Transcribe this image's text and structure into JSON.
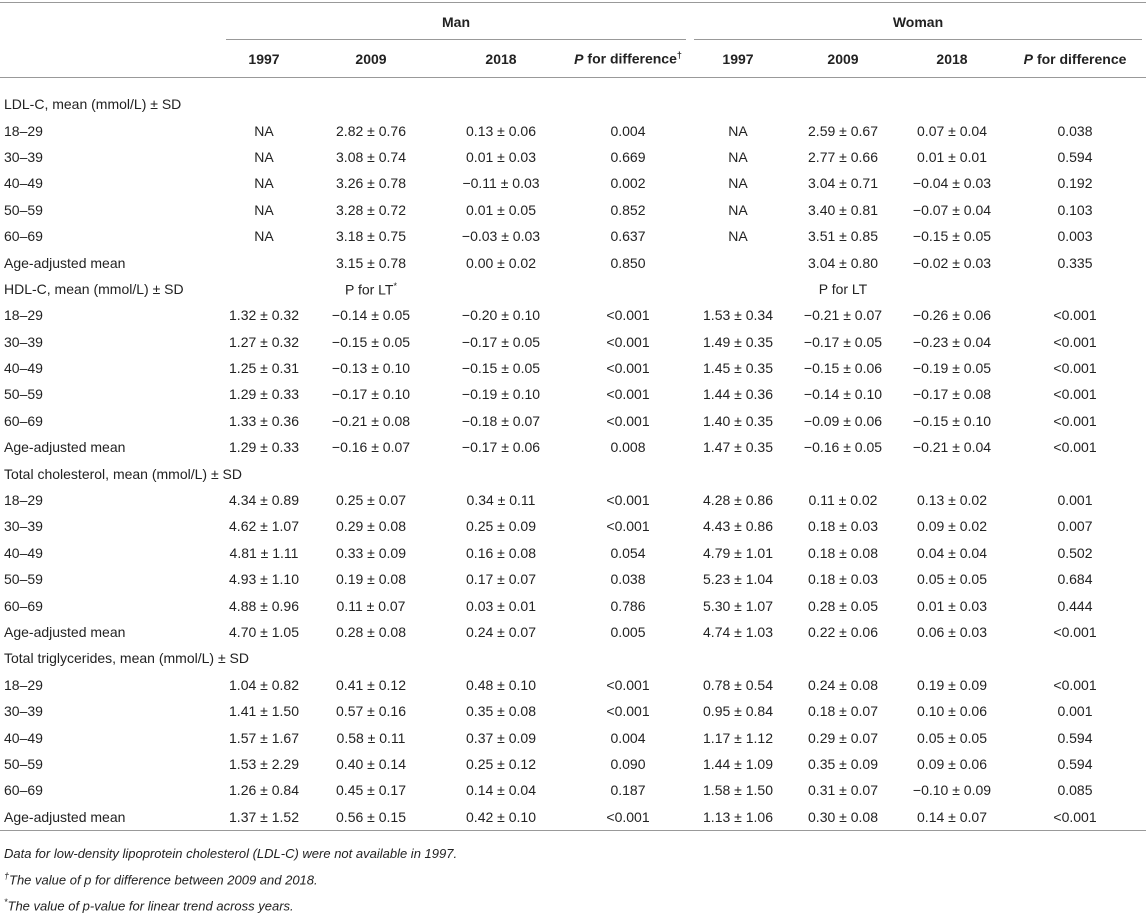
{
  "table": {
    "groups": [
      "Man",
      "Woman"
    ],
    "columns": [
      "1997",
      "2009",
      "2018",
      {
        "p": "P",
        "rest": "for difference",
        "mark": "†"
      },
      "1997",
      "2009",
      "2018",
      {
        "p": "P",
        "rest": "for difference"
      }
    ],
    "sections": [
      {
        "title": "LDL-C, mean (mmol/L) ± SD",
        "rows": [
          [
            "18–29",
            "NA",
            "2.82 ± 0.76",
            "0.13 ± 0.06",
            "0.004",
            "NA",
            "2.59 ± 0.67",
            "0.07 ± 0.04",
            "0.038"
          ],
          [
            "30–39",
            "NA",
            "3.08 ± 0.74",
            "0.01 ± 0.03",
            "0.669",
            "NA",
            "2.77 ± 0.66",
            "0.01 ± 0.01",
            "0.594"
          ],
          [
            "40–49",
            "NA",
            "3.26 ± 0.78",
            "−0.11 ± 0.03",
            "0.002",
            "NA",
            "3.04 ± 0.71",
            "−0.04 ± 0.03",
            "0.192"
          ],
          [
            "50–59",
            "NA",
            "3.28 ± 0.72",
            "0.01 ± 0.05",
            "0.852",
            "NA",
            "3.40 ± 0.81",
            "−0.07 ± 0.04",
            "0.103"
          ],
          [
            "60–69",
            "NA",
            "3.18 ± 0.75",
            "−0.03 ± 0.03",
            "0.637",
            "NA",
            "3.51 ± 0.85",
            "−0.15 ± 0.05",
            "0.003"
          ],
          [
            "Age-adjusted mean",
            null,
            "3.15 ± 0.78",
            "0.00 ± 0.02",
            "0.850",
            null,
            "3.04 ± 0.80",
            "−0.02 ± 0.03",
            "0.335"
          ]
        ]
      },
      {
        "title": "HDL-C, mean (mmol/L) ± SD",
        "notes": [
          {
            "text": "P for LT",
            "mark": "*"
          },
          {
            "text": "P for LT"
          }
        ],
        "rows": [
          [
            "18–29",
            "1.32 ± 0.32",
            "−0.14 ± 0.05",
            "−0.20 ± 0.10",
            "<0.001",
            "1.53 ± 0.34",
            "−0.21 ± 0.07",
            "−0.26 ± 0.06",
            "<0.001"
          ],
          [
            "30–39",
            "1.27 ± 0.32",
            "−0.15 ± 0.05",
            "−0.17 ± 0.05",
            "<0.001",
            "1.49 ± 0.35",
            "−0.17 ± 0.05",
            "−0.23 ± 0.04",
            "<0.001"
          ],
          [
            "40–49",
            "1.25 ± 0.31",
            "−0.13 ± 0.10",
            "−0.15 ± 0.05",
            "<0.001",
            "1.45 ± 0.35",
            "−0.15 ± 0.06",
            "−0.19 ± 0.05",
            "<0.001"
          ],
          [
            "50–59",
            "1.29 ± 0.33",
            "−0.17 ± 0.10",
            "−0.19 ± 0.10",
            "<0.001",
            "1.44 ± 0.36",
            "−0.14 ± 0.10",
            "−0.17 ± 0.08",
            "<0.001"
          ],
          [
            "60–69",
            "1.33 ± 0.36",
            "−0.21 ± 0.08",
            "−0.18 ± 0.07",
            "<0.001",
            "1.40 ± 0.35",
            "−0.09 ± 0.06",
            "−0.15 ± 0.10",
            "<0.001"
          ],
          [
            "Age-adjusted mean",
            "1.29 ± 0.33",
            "−0.16 ± 0.07",
            "−0.17 ± 0.06",
            "0.008",
            "1.47 ± 0.35",
            "−0.16 ± 0.05",
            "−0.21 ± 0.04",
            "<0.001"
          ]
        ]
      },
      {
        "title": "Total cholesterol, mean (mmol/L) ± SD",
        "rows": [
          [
            "18–29",
            "4.34 ± 0.89",
            "0.25 ± 0.07",
            "0.34 ± 0.11",
            "<0.001",
            "4.28 ± 0.86",
            "0.11 ± 0.02",
            "0.13 ± 0.02",
            "0.001"
          ],
          [
            "30–39",
            "4.62 ± 1.07",
            "0.29 ± 0.08",
            "0.25 ± 0.09",
            "<0.001",
            "4.43 ± 0.86",
            "0.18 ± 0.03",
            "0.09 ± 0.02",
            "0.007"
          ],
          [
            "40–49",
            "4.81 ± 1.11",
            "0.33 ± 0.09",
            "0.16 ± 0.08",
            "0.054",
            "4.79 ± 1.01",
            "0.18 ± 0.08",
            "0.04 ± 0.04",
            "0.502"
          ],
          [
            "50–59",
            "4.93 ± 1.10",
            "0.19 ± 0.08",
            "0.17 ± 0.07",
            "0.038",
            "5.23 ± 1.04",
            "0.18 ± 0.03",
            "0.05 ± 0.05",
            "0.684"
          ],
          [
            "60–69",
            "4.88 ± 0.96",
            "0.11 ± 0.07",
            "0.03 ± 0.01",
            "0.786",
            "5.30 ± 1.07",
            "0.28 ± 0.05",
            "0.01 ± 0.03",
            "0.444"
          ],
          [
            "Age-adjusted mean",
            "4.70 ± 1.05",
            "0.28 ± 0.08",
            "0.24 ± 0.07",
            "0.005",
            "4.74 ± 1.03",
            "0.22 ± 0.06",
            "0.06 ± 0.03",
            "<0.001"
          ]
        ]
      },
      {
        "title": "Total triglycerides, mean (mmol/L) ± SD",
        "rows": [
          [
            "18–29",
            "1.04 ± 0.82",
            "0.41 ± 0.12",
            "0.48 ± 0.10",
            "<0.001",
            "0.78 ± 0.54",
            "0.24 ± 0.08",
            "0.19 ± 0.09",
            "<0.001"
          ],
          [
            "30–39",
            "1.41 ± 1.50",
            "0.57 ± 0.16",
            "0.35 ± 0.08",
            "<0.001",
            "0.95 ± 0.84",
            "0.18 ± 0.07",
            "0.10 ± 0.06",
            "0.001"
          ],
          [
            "40–49",
            "1.57 ± 1.67",
            "0.58 ± 0.11",
            "0.37 ± 0.09",
            "0.004",
            "1.17 ± 1.12",
            "0.29 ± 0.07",
            "0.05 ± 0.05",
            "0.594"
          ],
          [
            "50–59",
            "1.53 ± 2.29",
            "0.40 ± 0.14",
            "0.25 ± 0.12",
            "0.090",
            "1.44 ± 1.09",
            "0.35 ± 0.09",
            "0.09 ± 0.06",
            "0.594"
          ],
          [
            "60–69",
            "1.26 ± 0.84",
            "0.45 ± 0.17",
            "0.14 ± 0.04",
            "0.187",
            "1.58 ± 1.50",
            "0.31 ± 0.07",
            "−0.10 ± 0.09",
            "0.085"
          ],
          [
            "Age-adjusted mean",
            "1.37 ± 1.52",
            "0.56 ± 0.15",
            "0.42 ± 0.10",
            "<0.001",
            "1.13 ± 1.06",
            "0.30 ± 0.08",
            "0.14 ± 0.07",
            "<0.001"
          ]
        ]
      }
    ],
    "footnotes": [
      {
        "text": "Data for low-density lipoprotein cholesterol (LDL-C) were not available in 1997."
      },
      {
        "mark": "†",
        "text": "The value of p for difference between 2009 and 2018."
      },
      {
        "mark": "*",
        "text": "The value of p-value for linear trend across years."
      }
    ]
  }
}
